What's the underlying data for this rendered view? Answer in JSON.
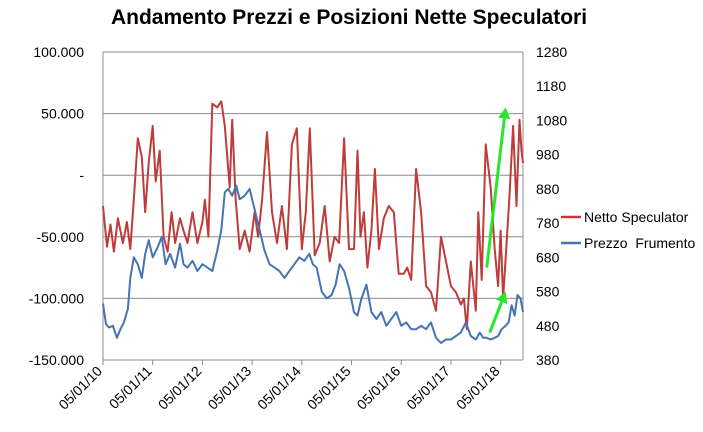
{
  "chart_data": {
    "type": "line",
    "title": "Andamento Prezzi e Posizioni Nette Speculatori",
    "xlabel": "",
    "ylabel": "",
    "x_ticks": [
      "05/01/10",
      "05/01/11",
      "05/01/12",
      "05/01/13",
      "05/01/14",
      "05/01/15",
      "05/01/16",
      "05/01/17",
      "05/01/18"
    ],
    "x_range": [
      2010.0,
      2018.45
    ],
    "y_left": {
      "range": [
        -150000,
        100000
      ],
      "ticks": [
        100000,
        50000,
        0,
        -50000,
        -100000,
        -150000
      ],
      "tick_labels": [
        "100.000",
        "50.000",
        "-",
        "-50.000",
        "-100.000",
        "-150.000"
      ]
    },
    "y_right": {
      "range": [
        380,
        1280
      ],
      "ticks": [
        1280,
        1180,
        1080,
        980,
        880,
        780,
        680,
        580,
        480,
        380
      ],
      "tick_labels": [
        "1280",
        "1180",
        "1080",
        "980",
        "880",
        "780",
        "680",
        "580",
        "480",
        "380"
      ]
    },
    "grid": true,
    "legend_position": "right",
    "series": [
      {
        "name": "Netto Speculator",
        "axis": "left",
        "color": "#be3c3a",
        "x": [
          2010.0,
          2010.08,
          2010.15,
          2010.22,
          2010.3,
          2010.4,
          2010.48,
          2010.55,
          2010.62,
          2010.7,
          2010.78,
          2010.85,
          2010.92,
          2011.0,
          2011.06,
          2011.14,
          2011.22,
          2011.3,
          2011.38,
          2011.45,
          2011.55,
          2011.62,
          2011.7,
          2011.8,
          2011.9,
          2012.0,
          2012.05,
          2012.12,
          2012.2,
          2012.3,
          2012.38,
          2012.45,
          2012.55,
          2012.6,
          2012.67,
          2012.75,
          2012.85,
          2012.95,
          2013.05,
          2013.12,
          2013.2,
          2013.3,
          2013.4,
          2013.5,
          2013.6,
          2013.7,
          2013.8,
          2013.9,
          2014.0,
          2014.08,
          2014.16,
          2014.26,
          2014.36,
          2014.46,
          2014.56,
          2014.66,
          2014.75,
          2014.85,
          2014.95,
          2015.05,
          2015.12,
          2015.18,
          2015.25,
          2015.32,
          2015.4,
          2015.47,
          2015.55,
          2015.65,
          2015.75,
          2015.85,
          2015.95,
          2016.05,
          2016.12,
          2016.2,
          2016.3,
          2016.4,
          2016.5,
          2016.6,
          2016.7,
          2016.8,
          2016.9,
          2017.0,
          2017.1,
          2017.2,
          2017.26,
          2017.32,
          2017.4,
          2017.5,
          2017.55,
          2017.62,
          2017.7,
          2017.8,
          2017.88,
          2017.95,
          2018.0,
          2018.05,
          2018.12,
          2018.18,
          2018.25,
          2018.32,
          2018.38,
          2018.42,
          2018.45
        ],
        "values": [
          -25000,
          -58000,
          -40000,
          -62000,
          -35000,
          -55000,
          -38000,
          -60000,
          -20000,
          30000,
          15000,
          -30000,
          10000,
          40000,
          -5000,
          20000,
          -50000,
          -62000,
          -30000,
          -55000,
          -35000,
          -45000,
          -55000,
          -30000,
          -55000,
          -38000,
          -20000,
          -50000,
          58000,
          55000,
          60000,
          40000,
          -10000,
          45000,
          -20000,
          -60000,
          -45000,
          -62000,
          -30000,
          -50000,
          -20000,
          35000,
          -30000,
          -55000,
          -25000,
          -60000,
          25000,
          38000,
          -60000,
          -30000,
          38000,
          -65000,
          -55000,
          -25000,
          -70000,
          -50000,
          -55000,
          30000,
          -60000,
          -60000,
          20000,
          -50000,
          -30000,
          -75000,
          -45000,
          5000,
          -60000,
          -35000,
          -25000,
          -30000,
          -80000,
          -80000,
          -75000,
          -85000,
          5000,
          -30000,
          -90000,
          -95000,
          -110000,
          -50000,
          -70000,
          -90000,
          -95000,
          -105000,
          -100000,
          -125000,
          -70000,
          -110000,
          -30000,
          -85000,
          25000,
          -10000,
          -60000,
          -90000,
          -45000,
          -100000,
          -55000,
          -15000,
          40000,
          -25000,
          45000,
          20000,
          10000
        ]
      },
      {
        "name": "Prezzo  Frumento",
        "axis": "right",
        "color": "#4674b3",
        "x": [
          2010.0,
          2010.06,
          2010.12,
          2010.2,
          2010.28,
          2010.35,
          2010.42,
          2010.5,
          2010.55,
          2010.62,
          2010.7,
          2010.78,
          2010.85,
          2010.92,
          2011.0,
          2011.1,
          2011.18,
          2011.26,
          2011.35,
          2011.45,
          2011.55,
          2011.62,
          2011.7,
          2011.8,
          2011.9,
          2012.0,
          2012.1,
          2012.2,
          2012.3,
          2012.38,
          2012.45,
          2012.52,
          2012.6,
          2012.68,
          2012.75,
          2012.85,
          2012.95,
          2013.05,
          2013.15,
          2013.25,
          2013.35,
          2013.45,
          2013.55,
          2013.65,
          2013.75,
          2013.85,
          2013.95,
          2014.05,
          2014.15,
          2014.22,
          2014.3,
          2014.4,
          2014.5,
          2014.6,
          2014.68,
          2014.76,
          2014.85,
          2014.95,
          2015.05,
          2015.12,
          2015.2,
          2015.3,
          2015.4,
          2015.5,
          2015.6,
          2015.7,
          2015.8,
          2015.9,
          2016.0,
          2016.1,
          2016.2,
          2016.3,
          2016.4,
          2016.5,
          2016.6,
          2016.7,
          2016.8,
          2016.9,
          2017.0,
          2017.1,
          2017.2,
          2017.3,
          2017.4,
          2017.5,
          2017.58,
          2017.65,
          2017.72,
          2017.8,
          2017.88,
          2017.95,
          2018.02,
          2018.1,
          2018.16,
          2018.22,
          2018.28,
          2018.34,
          2018.4,
          2018.45
        ],
        "values": [
          545,
          485,
          475,
          480,
          445,
          470,
          490,
          530,
          620,
          680,
          660,
          620,
          690,
          730,
          680,
          710,
          740,
          660,
          690,
          650,
          720,
          660,
          650,
          670,
          640,
          660,
          650,
          640,
          700,
          760,
          870,
          880,
          860,
          890,
          850,
          860,
          880,
          820,
          760,
          700,
          660,
          650,
          640,
          620,
          640,
          660,
          680,
          670,
          690,
          660,
          650,
          580,
          560,
          570,
          600,
          660,
          640,
          590,
          520,
          510,
          560,
          600,
          520,
          500,
          520,
          480,
          500,
          520,
          480,
          490,
          470,
          470,
          480,
          470,
          490,
          445,
          430,
          440,
          440,
          450,
          460,
          490,
          450,
          440,
          460,
          445,
          445,
          440,
          445,
          450,
          470,
          480,
          490,
          540,
          510,
          570,
          560,
          520
        ]
      }
    ],
    "annotations": [
      {
        "type": "arrow",
        "color": "#28e628",
        "x": [
          2017.72,
          2018.1
        ],
        "y_axis": "left",
        "y": [
          -75000,
          55000
        ]
      },
      {
        "type": "arrow",
        "color": "#28e628",
        "x": [
          2017.78,
          2018.1
        ],
        "y_axis": "right",
        "y": [
          460,
          580
        ]
      }
    ]
  }
}
